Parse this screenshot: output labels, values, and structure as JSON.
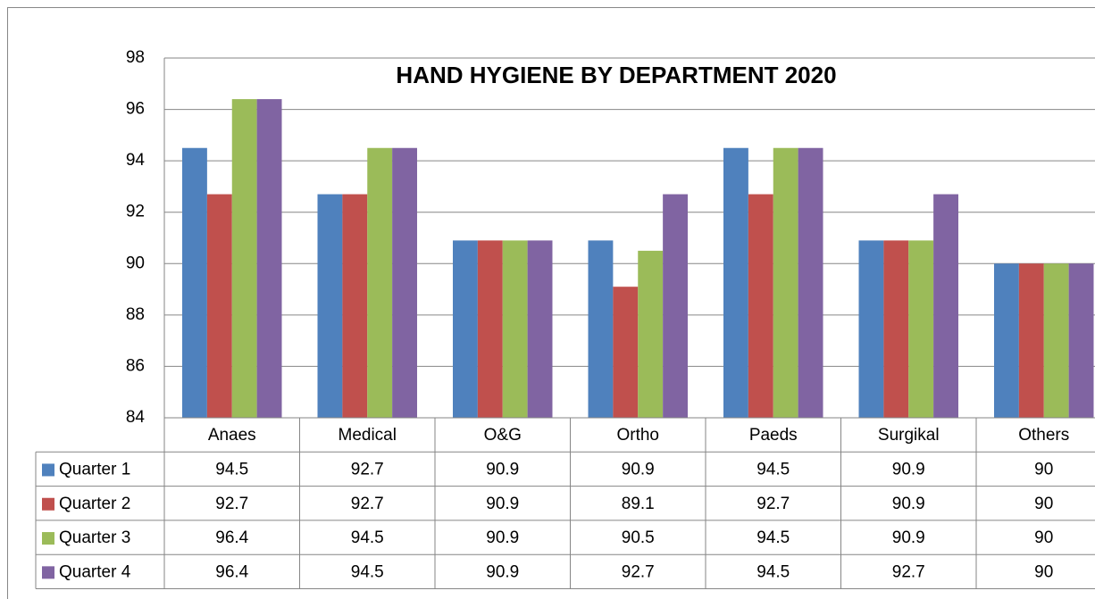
{
  "chart_data": {
    "type": "bar",
    "title": "HAND HYGIENE  BY DEPARTMENT 2020",
    "categories": [
      "Anaes",
      "Medical",
      "O&G",
      "Ortho",
      "Paeds",
      "Surgikal",
      "Others"
    ],
    "series": [
      {
        "name": "Quarter 1",
        "color": "#4f81bd",
        "values": [
          94.5,
          92.7,
          90.9,
          90.9,
          94.5,
          90.9,
          90
        ]
      },
      {
        "name": "Quarter 2",
        "color": "#c0504d",
        "values": [
          92.7,
          92.7,
          90.9,
          89.1,
          92.7,
          90.9,
          90
        ]
      },
      {
        "name": "Quarter 3",
        "color": "#9bbb59",
        "values": [
          96.4,
          94.5,
          90.9,
          90.5,
          94.5,
          90.9,
          90
        ]
      },
      {
        "name": "Quarter 4",
        "color": "#8064a2",
        "values": [
          96.4,
          94.5,
          90.9,
          92.7,
          94.5,
          92.7,
          90
        ]
      }
    ],
    "ylim": [
      84,
      98
    ],
    "yticks": [
      84,
      86,
      88,
      90,
      92,
      94,
      96,
      98
    ],
    "grid": true,
    "data_table": true
  }
}
